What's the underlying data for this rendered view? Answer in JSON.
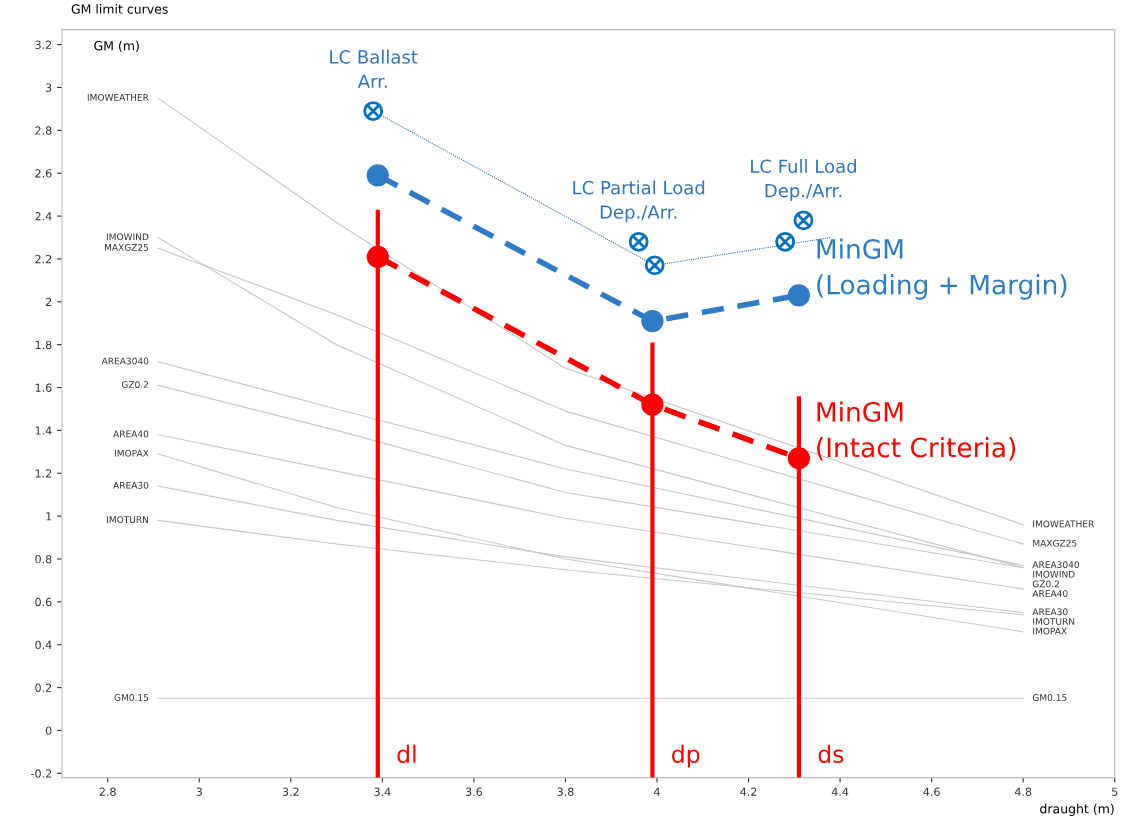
{
  "chart_data": {
    "type": "line",
    "title": "GM limit curves",
    "xlabel": "draught (m)",
    "ylabel": "GM (m)",
    "xlim": [
      2.7,
      5.0
    ],
    "ylim": [
      -0.22,
      3.27
    ],
    "xticks": [
      2.8,
      3,
      3.2,
      3.4,
      3.6,
      3.8,
      4,
      4.2,
      4.4,
      4.6,
      4.8,
      5
    ],
    "yticks": [
      -0.2,
      0,
      0.2,
      0.4,
      0.6,
      0.8,
      1,
      1.2,
      1.4,
      1.6,
      1.8,
      2,
      2.2,
      2.4,
      2.6,
      2.8,
      3,
      3.2
    ],
    "grid": false,
    "legend": false,
    "series": [
      {
        "name": "IMOWEATHER",
        "color": "#c8c8c8",
        "x": [
          2.91,
          3.3,
          3.8,
          4.8
        ],
        "values": [
          2.95,
          2.37,
          1.69,
          0.96
        ]
      },
      {
        "name": "IMOWIND",
        "color": "#c8c8c8",
        "x": [
          2.91,
          3.3,
          3.8,
          4.8
        ],
        "values": [
          2.3,
          1.8,
          1.33,
          0.76
        ]
      },
      {
        "name": "MAXGZ25",
        "color": "#c8c8c8",
        "x": [
          2.91,
          3.3,
          3.8,
          4.8
        ],
        "values": [
          2.25,
          1.94,
          1.49,
          0.87
        ]
      },
      {
        "name": "AREA3040",
        "color": "#c8c8c8",
        "x": [
          2.91,
          3.3,
          3.8,
          4.8
        ],
        "values": [
          1.72,
          1.5,
          1.22,
          0.77
        ]
      },
      {
        "name": "GZ0.2",
        "color": "#c8c8c8",
        "x": [
          2.91,
          3.3,
          3.8,
          4.8
        ],
        "values": [
          1.61,
          1.4,
          1.11,
          0.76
        ]
      },
      {
        "name": "AREA40",
        "color": "#c8c8c8",
        "x": [
          2.91,
          3.3,
          3.8,
          4.8
        ],
        "values": [
          1.38,
          1.21,
          0.99,
          0.66
        ]
      },
      {
        "name": "IMOPAX",
        "color": "#c8c8c8",
        "x": [
          2.91,
          3.3,
          3.8,
          4.8
        ],
        "values": [
          1.29,
          1.04,
          0.8,
          0.46
        ]
      },
      {
        "name": "AREA30",
        "color": "#c8c8c8",
        "x": [
          2.91,
          3.3,
          3.8,
          4.8
        ],
        "values": [
          1.14,
          0.98,
          0.81,
          0.55
        ]
      },
      {
        "name": "IMOTURN",
        "color": "#c8c8c8",
        "x": [
          2.91,
          3.3,
          3.8,
          4.8
        ],
        "values": [
          0.98,
          0.87,
          0.75,
          0.54
        ]
      },
      {
        "name": "GM0.15",
        "color": "#c8c8c8",
        "x": [
          2.91,
          3.3,
          3.8,
          4.8
        ],
        "values": [
          0.15,
          0.15,
          0.15,
          0.15
        ]
      },
      {
        "name": "dl",
        "color": "#ff0000",
        "x": [
          3.39,
          3.39
        ],
        "values": [
          -0.22,
          2.42
        ]
      },
      {
        "name": "dp",
        "color": "#ff0000",
        "x": [
          3.99,
          3.99
        ],
        "values": [
          -0.22,
          1.8
        ]
      },
      {
        "name": "ds",
        "color": "#ff0000",
        "x": [
          4.31,
          4.31
        ],
        "values": [
          -0.22,
          1.55
        ]
      },
      {
        "name": "MinGM\n(Intact Criteria)",
        "color": "#ff0000",
        "x": [
          3.39,
          3.99,
          4.31
        ],
        "values": [
          2.21,
          1.52,
          1.27
        ],
        "marker": "circle",
        "line_style": "dashed"
      },
      {
        "name": "MinGM\n(Loading + Margin)",
        "color": "#2e7bc8",
        "x": [
          3.39,
          3.99,
          4.31
        ],
        "values": [
          2.59,
          1.91,
          2.03
        ],
        "marker": "circle",
        "line_style": "dashed"
      },
      {
        "color": "#2e75b6",
        "x": [
          3.38,
          3.995,
          4.38
        ],
        "values": [
          2.89,
          2.17,
          2.3
        ],
        "marker": "none",
        "line_style": "dotted"
      },
      {
        "type": "scatter",
        "color": "#0070c0",
        "x": [
          3.38,
          3.96,
          3.995,
          4.28,
          4.32
        ],
        "values": [
          2.89,
          2.28,
          2.17,
          2.28,
          2.38
        ],
        "marker": "cross"
      }
    ],
    "annotations": [
      {
        "text": "LC Ballast\nArr.",
        "x": 3.38,
        "y": 2.89
      },
      {
        "text": "LC Partial Load\nDep./Arr.",
        "x": 3.96,
        "y": 2.28
      },
      {
        "text": "LC Full Load\nDep./Arr.",
        "x": 4.32,
        "y": 2.38
      }
    ]
  }
}
